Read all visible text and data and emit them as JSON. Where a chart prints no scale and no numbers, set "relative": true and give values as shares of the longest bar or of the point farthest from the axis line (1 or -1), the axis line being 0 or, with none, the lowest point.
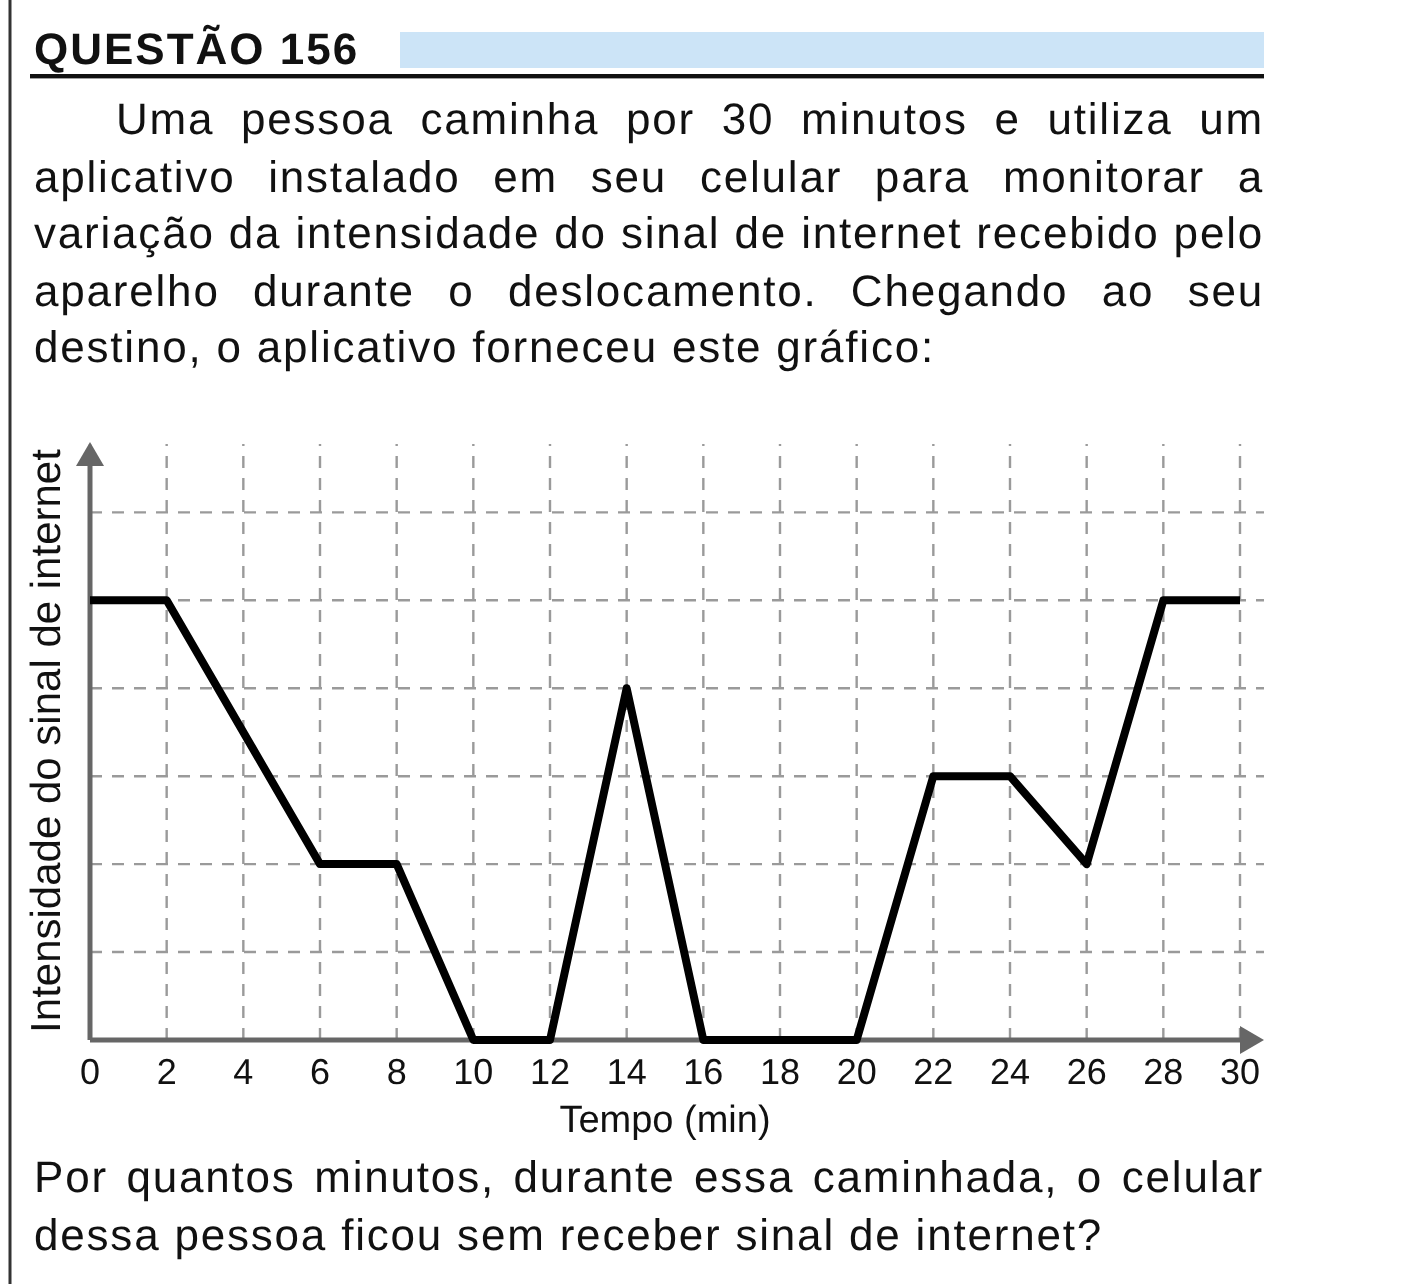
{
  "chart_data": {
    "type": "line",
    "title": "QUESTÃO 156",
    "subtitle": "Uma pessoa caminha por 30 minutos e utiliza um aplicativo instalado em seu celular para monitorar a variação da intensidade do sinal de internet recebido pelo aparelho durante o deslocamento. Chegando ao seu destino, o aplicativo forneceu este gráfico:",
    "xlabel": "Tempo (min)",
    "ylabel": "Intensidade do sinal de internet",
    "annotations": [
      "Por quantos minutos, durante essa caminhada, o celular dessa pessoa ficou sem receber sinal de internet?"
    ],
    "x": [
      0,
      2,
      6,
      8,
      10,
      12,
      14,
      16,
      20,
      22,
      24,
      26,
      28,
      30
    ],
    "series": [
      {
        "color": "#000000",
        "values": [
          1,
          1,
          0.4,
          0.4,
          0,
          0,
          0.8,
          0,
          0,
          0.6,
          0.6,
          0.4,
          1,
          1
        ]
      }
    ],
    "relative": true,
    "xlim": [
      0,
      30
    ],
    "xticks": [
      0,
      2,
      4,
      6,
      8,
      10,
      12,
      14,
      16,
      18,
      20,
      22,
      24,
      26,
      28,
      30
    ],
    "grid": true
  }
}
